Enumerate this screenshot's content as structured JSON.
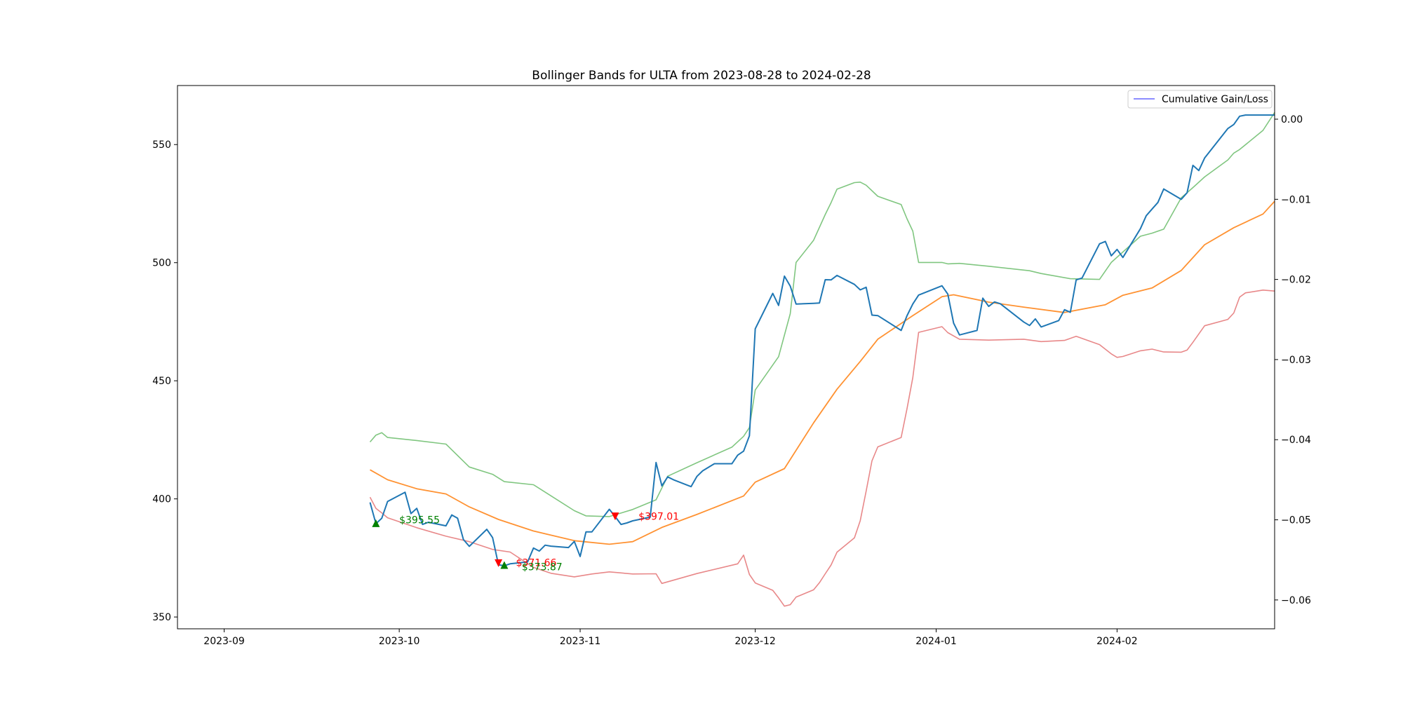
{
  "chart_data": {
    "type": "line",
    "title": "Bollinger Bands for ULTA from 2023-08-28 to 2024-02-28",
    "xlabel": "",
    "ylabel": "",
    "x_ticks": [
      "2023-09",
      "2023-10",
      "2023-11",
      "2023-12",
      "2024-01",
      "2024-02"
    ],
    "y_left_ticks": [
      "350",
      "400",
      "450",
      "500",
      "550"
    ],
    "y_right_ticks": [
      "0.00",
      "−0.01",
      "−0.02",
      "−0.03",
      "−0.04",
      "−0.05",
      "−0.06"
    ],
    "xlim": [
      "2023-08-24",
      "2024-02-28"
    ],
    "ylim": [
      345,
      575
    ],
    "y2lim": [
      -0.0636,
      0.0042
    ],
    "grid": false,
    "legend": {
      "placement": "top-right",
      "entries": [
        "Cumulative Gain/Loss"
      ]
    },
    "colors": {
      "price": "#1f77b4",
      "middle_band": "#ff7f0e",
      "upper_band": "#2ca02c",
      "lower_band": "#d62728",
      "cumulative": "#0000ff",
      "buy_marker": "#008000",
      "sell_marker": "#ff0000"
    },
    "series": [
      {
        "key": "price",
        "dates": [
          "2023-09-26",
          "2023-09-27",
          "2023-09-28",
          "2023-09-29",
          "2023-10-02",
          "2023-10-03",
          "2023-10-04",
          "2023-10-05",
          "2023-10-06",
          "2023-10-09",
          "2023-10-10",
          "2023-10-11",
          "2023-10-12",
          "2023-10-13",
          "2023-10-16",
          "2023-10-17",
          "2023-10-18",
          "2023-10-19",
          "2023-10-20",
          "2023-10-23",
          "2023-10-24",
          "2023-10-25",
          "2023-10-26",
          "2023-10-27",
          "2023-10-30",
          "2023-10-31",
          "2023-11-01",
          "2023-11-02",
          "2023-11-03",
          "2023-11-06",
          "2023-11-07",
          "2023-11-08",
          "2023-11-09",
          "2023-11-10",
          "2023-11-13",
          "2023-11-14",
          "2023-11-15",
          "2023-11-16",
          "2023-11-17",
          "2023-11-20",
          "2023-11-21",
          "2023-11-22",
          "2023-11-24",
          "2023-11-27",
          "2023-11-28",
          "2023-11-29",
          "2023-11-30",
          "2023-12-01",
          "2023-12-04",
          "2023-12-05",
          "2023-12-06",
          "2023-12-07",
          "2023-12-08",
          "2023-12-11",
          "2023-12-12",
          "2023-12-13",
          "2023-12-14",
          "2023-12-15",
          "2023-12-18",
          "2023-12-19",
          "2023-12-20",
          "2023-12-21",
          "2023-12-22",
          "2023-12-26",
          "2023-12-27",
          "2023-12-28",
          "2023-12-29",
          "2024-01-02",
          "2024-01-03",
          "2024-01-04",
          "2024-01-05",
          "2024-01-08",
          "2024-01-09",
          "2024-01-10",
          "2024-01-11",
          "2024-01-12",
          "2024-01-16",
          "2024-01-17",
          "2024-01-18",
          "2024-01-19",
          "2024-01-22",
          "2024-01-23",
          "2024-01-24",
          "2024-01-25",
          "2024-01-26",
          "2024-01-29",
          "2024-01-30",
          "2024-01-31",
          "2024-02-01",
          "2024-02-02",
          "2024-02-05",
          "2024-02-06",
          "2024-02-07",
          "2024-02-08",
          "2024-02-09",
          "2024-02-12",
          "2024-02-13",
          "2024-02-14",
          "2024-02-15",
          "2024-02-16",
          "2024-02-20",
          "2024-02-21",
          "2024-02-22",
          "2024-02-23",
          "2024-02-26",
          "2024-02-27",
          "2024-02-28"
        ],
        "values": [
          398.5,
          389.5,
          391.8,
          398.9,
          402.8,
          393.8,
          396.0,
          389.2,
          390.1,
          388.6,
          393.2,
          391.8,
          382.8,
          379.9,
          387.1,
          383.6,
          372.1,
          371.7,
          372.5,
          373.3,
          379.2,
          377.9,
          380.4,
          380.0,
          379.4,
          382.0,
          375.6,
          386.0,
          386.0,
          395.6,
          392.5,
          389.2,
          389.8,
          390.7,
          392.3,
          415.4,
          405.5,
          409.3,
          408.1,
          405.2,
          409.5,
          411.9,
          414.9,
          414.9,
          418.5,
          420.2,
          426.7,
          472.0,
          487.0,
          481.9,
          494.3,
          490.1,
          482.5,
          482.8,
          482.9,
          492.8,
          492.7,
          494.6,
          490.8,
          488.5,
          489.6,
          477.8,
          477.6,
          471.3,
          477.5,
          482.5,
          486.3,
          490.2,
          486.7,
          474.4,
          469.4,
          471.3,
          485.0,
          481.5,
          483.4,
          482.6,
          474.9,
          473.4,
          476.2,
          472.8,
          475.5,
          480.1,
          479.0,
          492.7,
          493.5,
          508.0,
          509.0,
          502.9,
          505.6,
          502.2,
          514.4,
          519.9,
          522.7,
          525.5,
          531.2,
          526.8,
          529.6,
          541.2,
          539.0,
          544.3,
          556.8,
          558.5,
          562.0,
          562.5,
          562.5,
          562.5,
          562.5
        ]
      },
      {
        "key": "middle_band",
        "dates": [
          "2023-09-26",
          "2023-09-29",
          "2023-10-04",
          "2023-10-09",
          "2023-10-13",
          "2023-10-18",
          "2023-10-24",
          "2023-10-31",
          "2023-11-06",
          "2023-11-10",
          "2023-11-15",
          "2023-11-21",
          "2023-11-29",
          "2023-12-01",
          "2023-12-06",
          "2023-12-11",
          "2023-12-15",
          "2023-12-19",
          "2023-12-22",
          "2023-12-28",
          "2024-01-02",
          "2024-01-04",
          "2024-01-10",
          "2024-01-16",
          "2024-01-23",
          "2024-01-30",
          "2024-02-02",
          "2024-02-07",
          "2024-02-12",
          "2024-02-16",
          "2024-02-21",
          "2024-02-26",
          "2024-02-28"
        ],
        "values": [
          412.3,
          408.1,
          404.3,
          402.1,
          396.6,
          391.3,
          386.4,
          382.3,
          380.8,
          381.9,
          387.9,
          393.4,
          401.2,
          407.1,
          412.8,
          432.2,
          446.4,
          458.2,
          467.6,
          477.6,
          485.6,
          486.4,
          483.3,
          481.2,
          478.9,
          482.2,
          486.2,
          489.3,
          496.7,
          507.6,
          514.8,
          520.6,
          526.0
        ]
      },
      {
        "key": "upper_band",
        "dates": [
          "2023-09-26",
          "2023-09-27",
          "2023-09-28",
          "2023-09-29",
          "2023-10-04",
          "2023-10-09",
          "2023-10-13",
          "2023-10-17",
          "2023-10-19",
          "2023-10-24",
          "2023-10-27",
          "2023-10-31",
          "2023-11-02",
          "2023-11-06",
          "2023-11-10",
          "2023-11-14",
          "2023-11-16",
          "2023-11-21",
          "2023-11-27",
          "2023-11-29",
          "2023-11-30",
          "2023-12-01",
          "2023-12-05",
          "2023-12-07",
          "2023-12-08",
          "2023-12-11",
          "2023-12-13",
          "2023-12-14",
          "2023-12-15",
          "2023-12-18",
          "2023-12-19",
          "2023-12-20",
          "2023-12-22",
          "2023-12-26",
          "2023-12-27",
          "2023-12-28",
          "2023-12-29",
          "2024-01-02",
          "2024-01-03",
          "2024-01-05",
          "2024-01-10",
          "2024-01-17",
          "2024-01-19",
          "2024-01-24",
          "2024-01-29",
          "2024-01-31",
          "2024-02-05",
          "2024-02-07",
          "2024-02-09",
          "2024-02-12",
          "2024-02-14",
          "2024-02-16",
          "2024-02-20",
          "2024-02-21",
          "2024-02-22",
          "2024-02-26",
          "2024-02-28"
        ],
        "values": [
          424.1,
          427.0,
          428.0,
          426.0,
          424.7,
          423.2,
          413.5,
          410.4,
          407.3,
          406.0,
          401.3,
          395.0,
          392.8,
          392.5,
          395.5,
          399.6,
          409.6,
          415.3,
          421.9,
          426.5,
          430.2,
          446.1,
          460.2,
          478.4,
          500.1,
          509.5,
          520.4,
          525.4,
          531.1,
          533.9,
          534.1,
          532.8,
          528.1,
          524.6,
          518.6,
          513.4,
          500.1,
          500.1,
          499.5,
          499.7,
          498.5,
          496.6,
          495.4,
          493.2,
          492.9,
          500.1,
          511.2,
          512.5,
          514.2,
          527.5,
          531.8,
          536.3,
          543.5,
          546.4,
          547.9,
          556.0,
          563.6
        ]
      },
      {
        "key": "lower_band",
        "dates": [
          "2023-09-26",
          "2023-09-27",
          "2023-09-28",
          "2023-09-29",
          "2023-10-04",
          "2023-10-09",
          "2023-10-13",
          "2023-10-17",
          "2023-10-20",
          "2023-10-24",
          "2023-10-27",
          "2023-10-31",
          "2023-11-03",
          "2023-11-06",
          "2023-11-10",
          "2023-11-14",
          "2023-11-15",
          "2023-11-21",
          "2023-11-28",
          "2023-11-29",
          "2023-11-30",
          "2023-12-01",
          "2023-12-04",
          "2023-12-05",
          "2023-12-06",
          "2023-12-07",
          "2023-12-08",
          "2023-12-11",
          "2023-12-12",
          "2023-12-13",
          "2023-12-14",
          "2023-12-15",
          "2023-12-18",
          "2023-12-19",
          "2023-12-20",
          "2023-12-21",
          "2023-12-22",
          "2023-12-26",
          "2023-12-27",
          "2023-12-28",
          "2023-12-29",
          "2024-01-02",
          "2024-01-03",
          "2024-01-05",
          "2024-01-10",
          "2024-01-16",
          "2024-01-19",
          "2024-01-23",
          "2024-01-25",
          "2024-01-29",
          "2024-01-31",
          "2024-02-01",
          "2024-02-02",
          "2024-02-05",
          "2024-02-07",
          "2024-02-09",
          "2024-02-12",
          "2024-02-13",
          "2024-02-14",
          "2024-02-16",
          "2024-02-20",
          "2024-02-21",
          "2024-02-22",
          "2024-02-23",
          "2024-02-26",
          "2024-02-28"
        ],
        "values": [
          400.7,
          396.0,
          394.1,
          392.0,
          387.8,
          384.2,
          381.9,
          378.6,
          377.5,
          371.0,
          368.5,
          367.0,
          368.2,
          369.1,
          368.2,
          368.3,
          364.2,
          368.4,
          372.5,
          376.2,
          368.0,
          364.4,
          361.3,
          358.1,
          354.6,
          355.2,
          358.4,
          361.5,
          364.5,
          368.3,
          372.0,
          377.4,
          383.5,
          390.8,
          403.3,
          416.1,
          422.0,
          426.0,
          438.1,
          451.3,
          470.5,
          472.9,
          470.4,
          467.6,
          467.2,
          467.6,
          466.6,
          467.1,
          468.8,
          465.3,
          461.4,
          459.9,
          460.3,
          462.7,
          463.4,
          462.2,
          462.1,
          463.0,
          466.3,
          473.3,
          476.0,
          478.7,
          485.4,
          487.2,
          488.4,
          488.0
        ]
      },
      {
        "key": "cumulative",
        "name": "Cumulative Gain/Loss",
        "axis": "right",
        "dates": [],
        "values": []
      }
    ],
    "signals": [
      {
        "type": "buy",
        "date": "2023-09-27",
        "price": 389.7,
        "label": "$395.55",
        "label_date": "2023-10-01",
        "label_value": 391.2
      },
      {
        "type": "sell",
        "date": "2023-10-18",
        "price": 372.8,
        "label": "$371.66",
        "label_date": "2023-10-21",
        "label_value": 373.1
      },
      {
        "type": "buy",
        "date": "2023-10-19",
        "price": 372.0,
        "label": "$373.87",
        "label_date": "2023-10-22",
        "label_value": 371.2
      },
      {
        "type": "sell",
        "date": "2023-11-07",
        "price": 392.6,
        "label": "$397.01",
        "label_date": "2023-11-11",
        "label_value": 392.6
      }
    ]
  }
}
